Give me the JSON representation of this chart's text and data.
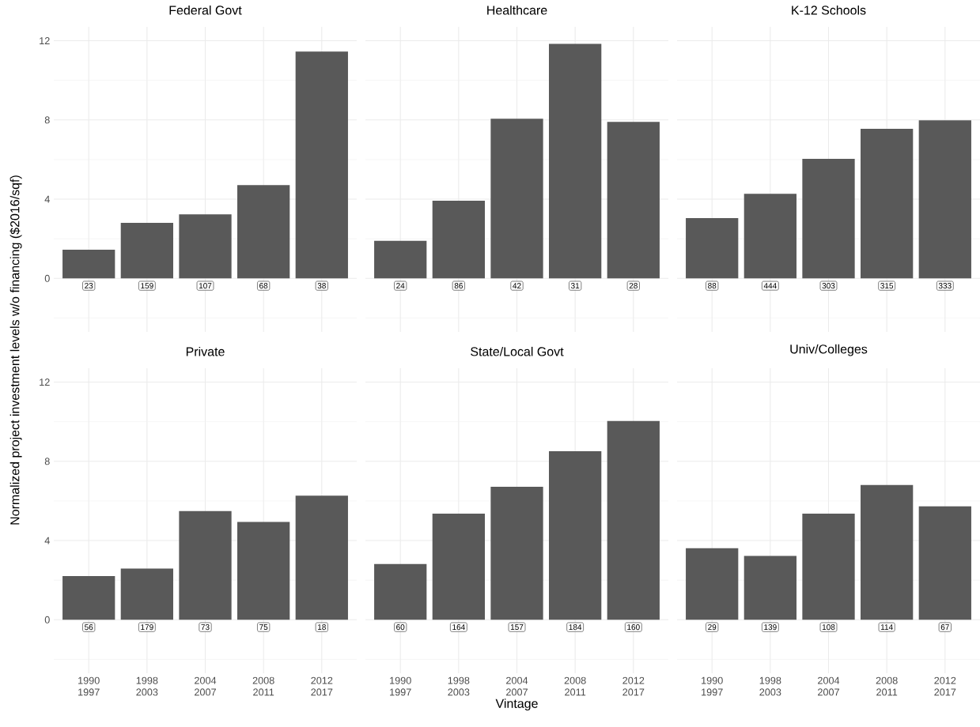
{
  "chart_data": [
    {
      "type": "bar",
      "title": "Federal Govt",
      "ylabel": "Normalized project investment levels w/o financing ($2016/sqf)",
      "categories": [
        "1990 1997",
        "1998 2003",
        "2004 2007",
        "2008 2011",
        "2012 2017"
      ],
      "values": [
        1.45,
        2.81,
        3.23,
        4.71,
        11.45
      ],
      "color": "#595959",
      "ylim": [
        -2.7,
        12.7
      ],
      "yticks": [
        {
          "value": -2,
          "label": null
        },
        0,
        {
          "value": 2,
          "label": null
        },
        4,
        {
          "value": 6,
          "label": null
        },
        8,
        {
          "value": 10,
          "label": null
        },
        12
      ],
      "grid": true,
      "tick_labels": "y",
      "annotations": [
        {
          "text": "23",
          "x": "1990 1997",
          "y": -0.37
        },
        {
          "text": "159",
          "x": "1998 2003",
          "y": -0.37
        },
        {
          "text": "107",
          "x": "2004 2007",
          "y": -0.37
        },
        {
          "text": "68",
          "x": "2008 2011",
          "y": -0.37
        },
        {
          "text": "38",
          "x": "2012 2017",
          "y": -0.37
        }
      ]
    },
    {
      "type": "bar",
      "title": "Healthcare",
      "categories": [
        "1990 1997",
        "1998 2003",
        "2004 2007",
        "2008 2011",
        "2012 2017"
      ],
      "values": [
        1.9,
        3.92,
        8.06,
        11.84,
        7.9
      ],
      "color": "#595959",
      "ylim": [
        -2.7,
        12.7
      ],
      "yticks": [
        {
          "value": -2,
          "label": null
        },
        0,
        {
          "value": 2,
          "label": null
        },
        4,
        {
          "value": 6,
          "label": null
        },
        8,
        {
          "value": 10,
          "label": null
        },
        12
      ],
      "grid": true,
      "tick_labels": false,
      "annotations": [
        {
          "text": "24",
          "x": "1990 1997",
          "y": -0.37
        },
        {
          "text": "86",
          "x": "1998 2003",
          "y": -0.37
        },
        {
          "text": "42",
          "x": "2004 2007",
          "y": -0.37
        },
        {
          "text": "31",
          "x": "2008 2011",
          "y": -0.37
        },
        {
          "text": "28",
          "x": "2012 2017",
          "y": -0.37
        }
      ]
    },
    {
      "type": "bar",
      "title": "K-12 Schools",
      "categories": [
        "1990 1997",
        "1998 2003",
        "2004 2007",
        "2008 2011",
        "2012 2017"
      ],
      "values": [
        3.05,
        4.27,
        6.04,
        7.55,
        7.98
      ],
      "color": "#595959",
      "ylim": [
        -2.7,
        12.7
      ],
      "yticks": [
        {
          "value": -2,
          "label": null
        },
        0,
        {
          "value": 2,
          "label": null
        },
        4,
        {
          "value": 6,
          "label": null
        },
        8,
        {
          "value": 10,
          "label": null
        },
        12
      ],
      "grid": true,
      "tick_labels": false,
      "annotations": [
        {
          "text": "88",
          "x": "1990 1997",
          "y": -0.37
        },
        {
          "text": "444",
          "x": "1998 2003",
          "y": -0.37
        },
        {
          "text": "303",
          "x": "2004 2007",
          "y": -0.37
        },
        {
          "text": "315",
          "x": "2008 2011",
          "y": -0.37
        },
        {
          "text": "333",
          "x": "2012 2017",
          "y": -0.37
        }
      ]
    },
    {
      "type": "bar",
      "title": "Private",
      "categories": [
        "1990 1997",
        "1998 2003",
        "2004 2007",
        "2008 2011",
        "2012 2017"
      ],
      "values": [
        2.21,
        2.59,
        5.49,
        4.94,
        6.27
      ],
      "color": "#595959",
      "ylim": [
        -2.7,
        12.7
      ],
      "yticks": [
        {
          "value": -2,
          "label": null
        },
        0,
        {
          "value": 2,
          "label": null
        },
        4,
        {
          "value": 6,
          "label": null
        },
        8,
        {
          "value": 10,
          "label": null
        },
        12
      ],
      "grid": true,
      "annotations": [
        {
          "text": "56",
          "x": "1990 1997",
          "y": -0.37
        },
        {
          "text": "179",
          "x": "1998 2003",
          "y": -0.37
        },
        {
          "text": "73",
          "x": "2004 2007",
          "y": -0.37
        },
        {
          "text": "75",
          "x": "2008 2011",
          "y": -0.37
        },
        {
          "text": "18",
          "x": "2012 2017",
          "y": -0.37
        }
      ]
    },
    {
      "type": "bar",
      "title": "State/Local Govt",
      "xlabel": "Vintage",
      "categories": [
        "1990 1997",
        "1998 2003",
        "2004 2007",
        "2008 2011",
        "2012 2017"
      ],
      "values": [
        2.82,
        5.36,
        6.72,
        8.51,
        10.04
      ],
      "color": "#595959",
      "ylim": [
        -2.7,
        12.7
      ],
      "yticks": [
        {
          "value": -2,
          "label": null
        },
        0,
        {
          "value": 2,
          "label": null
        },
        4,
        {
          "value": 6,
          "label": null
        },
        8,
        {
          "value": 10,
          "label": null
        },
        12
      ],
      "grid": true,
      "tick_labels": "x",
      "annotations": [
        {
          "text": "60",
          "x": "1990 1997",
          "y": -0.37
        },
        {
          "text": "164",
          "x": "1998 2003",
          "y": -0.37
        },
        {
          "text": "157",
          "x": "2004 2007",
          "y": -0.37
        },
        {
          "text": "184",
          "x": "2008 2011",
          "y": -0.37
        },
        {
          "text": "160",
          "x": "2012 2017",
          "y": -0.37
        }
      ]
    },
    {
      "type": "bar",
      "title": "Univ/Colleges",
      "categories": [
        "1990 1997",
        "1998 2003",
        "2004 2007",
        "2008 2011",
        "2012 2017"
      ],
      "values": [
        3.61,
        3.22,
        5.36,
        6.81,
        5.73
      ],
      "color": "#595959",
      "ylim": [
        -2.7,
        12.7
      ],
      "yticks": [
        {
          "value": -2,
          "label": null
        },
        0,
        {
          "value": 2,
          "label": null
        },
        4,
        {
          "value": 6,
          "label": null
        },
        8,
        {
          "value": 10,
          "label": null
        },
        12
      ],
      "grid": true,
      "tick_labels": "x",
      "annotations": [
        {
          "text": "29",
          "x": "1990 1997",
          "y": -0.37
        },
        {
          "text": "139",
          "x": "1998 2003",
          "y": -0.37
        },
        {
          "text": "108",
          "x": "2004 2007",
          "y": -0.37
        },
        {
          "text": "114",
          "x": "2008 2011",
          "y": -0.37
        },
        {
          "text": "67",
          "x": "2012 2017",
          "y": -0.37
        }
      ]
    }
  ]
}
